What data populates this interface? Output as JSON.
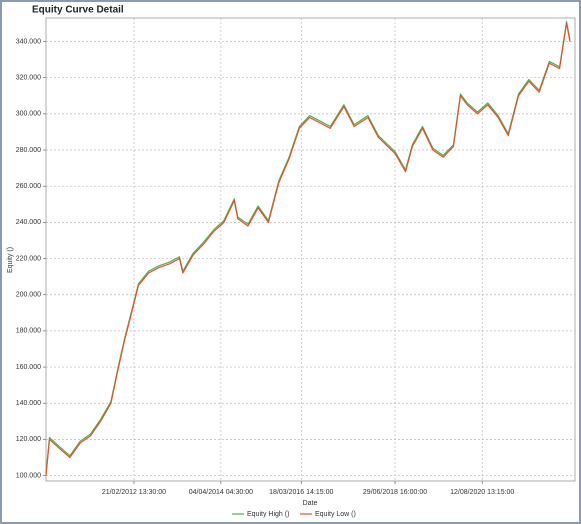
{
  "chart_data": {
    "type": "line",
    "title": "Equity Curve Detail",
    "x_label": "Date",
    "y_label": "Equity ()",
    "x": [
      "2010-01-01",
      "2010-02-01",
      "2010-05-01",
      "2010-08-01",
      "2010-11-01",
      "2011-02-01",
      "2011-05-01",
      "2011-08-01",
      "2011-10-01",
      "2011-12-01",
      "2012-02-01",
      "2012-04-01",
      "2012-07-01",
      "2012-10-01",
      "2013-01-01",
      "2013-04-01",
      "2013-05-01",
      "2013-08-01",
      "2013-11-01",
      "2014-02-01",
      "2014-05-01",
      "2014-08-01",
      "2014-09-01",
      "2014-12-01",
      "2015-03-01",
      "2015-06-01",
      "2015-09-01",
      "2015-12-01",
      "2016-03-01",
      "2016-06-01",
      "2016-09-01",
      "2016-12-01",
      "2017-04-01",
      "2017-07-01",
      "2017-11-01",
      "2018-02-01",
      "2018-07-01",
      "2018-10-01",
      "2018-12-01",
      "2019-03-01",
      "2019-06-01",
      "2019-09-01",
      "2019-12-01",
      "2020-02-01",
      "2020-04-01",
      "2020-07-01",
      "2020-10-01",
      "2021-01-01",
      "2021-04-01",
      "2021-07-01",
      "2021-10-01",
      "2022-01-01",
      "2022-04-01",
      "2022-07-01",
      "2022-09-01",
      "2022-10-01"
    ],
    "series": [
      {
        "name": "Equity High ()",
        "color": "#4caf50",
        "values": [
          101000,
          121000,
          116000,
          111000,
          119000,
          123000,
          131000,
          141000,
          159000,
          176000,
          191000,
          206000,
          213000,
          216000,
          218000,
          221000,
          213000,
          223000,
          229000,
          236000,
          241000,
          253000,
          243000,
          239000,
          249000,
          241000,
          263000,
          276000,
          293000,
          299000,
          296000,
          293000,
          305000,
          294000,
          299000,
          288000,
          279000,
          269000,
          283000,
          293000,
          281000,
          277000,
          283000,
          311000,
          306000,
          301000,
          306000,
          299000,
          289000,
          311000,
          319000,
          313000,
          329000,
          326000,
          351000,
          341000
        ]
      },
      {
        "name": "Equity Low ()",
        "color": "#e8502a",
        "values": [
          100000,
          120000,
          115000,
          110000,
          118000,
          122000,
          130000,
          140000,
          158000,
          175000,
          190000,
          205000,
          212000,
          215000,
          217000,
          220000,
          212000,
          222000,
          228000,
          235000,
          240000,
          252000,
          242000,
          238000,
          248000,
          240000,
          262000,
          275000,
          292000,
          298000,
          295000,
          292000,
          304000,
          293000,
          298000,
          287000,
          278000,
          268000,
          282000,
          292000,
          280000,
          276000,
          282000,
          310000,
          305000,
          300000,
          305000,
          298000,
          288000,
          310000,
          318000,
          312000,
          328000,
          325000,
          350000,
          340000
        ]
      }
    ],
    "xlim": [
      "2010-01-01",
      "2022-11-15"
    ],
    "xticks": [
      {
        "value": "2012-02-21T13:30:00",
        "label": "21/02/2012 13:30:00"
      },
      {
        "value": "2014-04-04T04:30:00",
        "label": "04/04/2014 04:30:00"
      },
      {
        "value": "2016-03-18T14:15:00",
        "label": "18/03/2016 14:15:00"
      },
      {
        "value": "2018-06-29T16:00:00",
        "label": "29/06/2018 16:00:00"
      },
      {
        "value": "2020-08-12T13:15:00",
        "label": "12/08/2020 13:15:00"
      }
    ],
    "ylim": [
      97000,
      353000
    ],
    "yticks": [
      {
        "value": 100000,
        "label": "100.000"
      },
      {
        "value": 120000,
        "label": "120.000"
      },
      {
        "value": 140000,
        "label": "140.000"
      },
      {
        "value": 160000,
        "label": "160.000"
      },
      {
        "value": 180000,
        "label": "180.000"
      },
      {
        "value": 200000,
        "label": "200.000"
      },
      {
        "value": 220000,
        "label": "220.000"
      },
      {
        "value": 240000,
        "label": "240.000"
      },
      {
        "value": 260000,
        "label": "260.000"
      },
      {
        "value": 280000,
        "label": "280.000"
      },
      {
        "value": 300000,
        "label": "300.000"
      },
      {
        "value": 320000,
        "label": "320.000"
      },
      {
        "value": 340000,
        "label": "340.000"
      }
    ],
    "grid": true,
    "legend": "bottom"
  }
}
